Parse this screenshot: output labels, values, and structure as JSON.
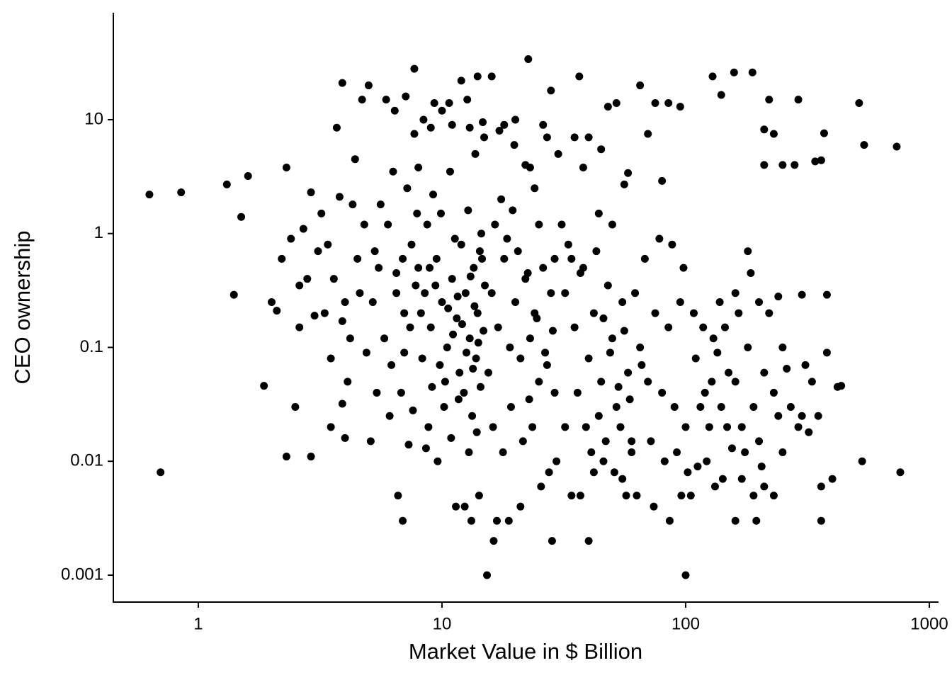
{
  "chart_data": {
    "type": "scatter",
    "x_label": "Market Value in $ Billion",
    "y_label": "CEO ownership",
    "xscale": "log",
    "yscale": "log",
    "grid": false,
    "color": "#000000",
    "xlim": [
      0.448,
      1091
    ],
    "xticks": [
      1,
      10,
      100,
      1000
    ],
    "ylim": [
      0.00058,
      86.9
    ],
    "yticks": [
      0.001,
      0.01,
      0.1,
      1,
      10
    ],
    "x": [
      0.63,
      0.85,
      0.7,
      1.31,
      1.6,
      1.5,
      1.4,
      1.86,
      2.5,
      2.3,
      2.9,
      7.7,
      22.6,
      36.6,
      129,
      158,
      188,
      515,
      540,
      735,
      760,
      530,
      15.3,
      100,
      16.3,
      28.3,
      40,
      370,
      290,
      360,
      220,
      435,
      380,
      3.2,
      3.4,
      3.6,
      3.8,
      4.0,
      4.2,
      4.5,
      4.8,
      3.5,
      4.1,
      4.6,
      3.9,
      4.3,
      4.9,
      3.3,
      4.4,
      3.7,
      3.9,
      5.0,
      4.7,
      4.0,
      3.9,
      5.1,
      3.1,
      2.8,
      2.6,
      2.4,
      2.2,
      2.0,
      2.7,
      2.3,
      2.9,
      2.1,
      2.6,
      3.0,
      3.5,
      5.5,
      6.0,
      6.5,
      7.0,
      7.5,
      5.8,
      6.2,
      6.8,
      7.2,
      7.8,
      5.2,
      5.6,
      6.3,
      6.9,
      7.4,
      7.9,
      5.4,
      6.1,
      6.6,
      6.9,
      7.3,
      5.9,
      6.4,
      7.1,
      7.7,
      8.0,
      7.0,
      6.5,
      5.3,
      7.6,
      8.0,
      8.2,
      8.5,
      9,
      9.5,
      10,
      10.5,
      11,
      11.5,
      12,
      12.5,
      13,
      13.5,
      14,
      14.5,
      15,
      8.7,
      9.2,
      9.8,
      10.3,
      10.8,
      11.3,
      11.8,
      12.3,
      12.8,
      13.3,
      13.8,
      14.3,
      14.8,
      8.3,
      8.9,
      9.4,
      9.9,
      10.6,
      11.1,
      11.6,
      12.1,
      12.6,
      13.1,
      13.6,
      14.1,
      14.6,
      8.8,
      9.6,
      10.2,
      11.4,
      12.4,
      13.2,
      14.2,
      9.0,
      10.0,
      11.0,
      12.0,
      13.0,
      14.0,
      14.7,
      8.4,
      9.3,
      10.7,
      12.7,
      13.7,
      14.9,
      8.6,
      10.9,
      12.9,
      13.9,
      9.1,
      11.7,
      13.4,
      14.4,
      16,
      17,
      18,
      19,
      20,
      21,
      22,
      23,
      24,
      25,
      26,
      27,
      28,
      29,
      16.5,
      17.5,
      18.5,
      19.5,
      20.5,
      22.5,
      24.5,
      26.5,
      28.5,
      16.2,
      17.8,
      19.2,
      21.5,
      23.5,
      25.5,
      27.5,
      29.5,
      16.8,
      18.8,
      21.0,
      17.2,
      19.8,
      22.0,
      24.0,
      26.0,
      28.0,
      16.0,
      18.0,
      20.0,
      23.0,
      27.0,
      30,
      25.0,
      29.0,
      15.5,
      22.8,
      32,
      35,
      38,
      40,
      42,
      45,
      48,
      50,
      52,
      55,
      58,
      33,
      36,
      39,
      41,
      44,
      47,
      51,
      54,
      57,
      31,
      34,
      37,
      43,
      46,
      49,
      53,
      56,
      59,
      35,
      38,
      40,
      45,
      48,
      52,
      56,
      58,
      34,
      37,
      42,
      46,
      55,
      60,
      32,
      50,
      44,
      62,
      65,
      70,
      75,
      80,
      85,
      90,
      95,
      100,
      110,
      120,
      130,
      140,
      150,
      68,
      78,
      88,
      98,
      108,
      118,
      128,
      138,
      148,
      72,
      82,
      92,
      102,
      112,
      122,
      132,
      142,
      63,
      74,
      86,
      96,
      105,
      65,
      75,
      85,
      95,
      70,
      80,
      60,
      66,
      115,
      125,
      135,
      145,
      160,
      170,
      180,
      190,
      200,
      210,
      220,
      230,
      240,
      250,
      270,
      290,
      310,
      330,
      350,
      380,
      420,
      160,
      180,
      200,
      240,
      300,
      170,
      190,
      210,
      230,
      160,
      195,
      250,
      300,
      360,
      360,
      400,
      155,
      175,
      205,
      210,
      230,
      250,
      280,
      210,
      340,
      140,
      165,
      185,
      260,
      320
    ],
    "values": [
      2.2,
      2.3,
      0.008,
      2.7,
      3.2,
      1.4,
      0.29,
      0.046,
      0.03,
      0.011,
      0.011,
      28,
      34,
      24,
      24,
      26,
      26,
      14,
      6,
      5.8,
      0.008,
      0.01,
      0.001,
      0.001,
      0.002,
      0.002,
      0.002,
      7.6,
      15,
      4.4,
      15,
      0.046,
      0.29,
      1.5,
      0.8,
      0.4,
      2.1,
      0.25,
      0.12,
      0.6,
      1.2,
      0.08,
      0.05,
      0.3,
      0.17,
      1.8,
      0.09,
      0.2,
      4.5,
      8.5,
      21,
      20,
      15,
      0.016,
      0.032,
      0.015,
      0.7,
      0.4,
      0.35,
      0.9,
      0.6,
      0.25,
      1.1,
      3.8,
      2.3,
      0.21,
      0.15,
      0.19,
      0.02,
      0.5,
      1.2,
      0.3,
      0.2,
      0.8,
      0.12,
      0.07,
      0.04,
      2.5,
      0.35,
      0.25,
      1.8,
      3.5,
      0.6,
      0.15,
      1.5,
      0.04,
      0.025,
      0.005,
      0.003,
      0.014,
      15,
      12,
      16,
      7.5,
      3.8,
      0.09,
      0.45,
      0.7,
      0.028,
      0.5,
      0.2,
      0.3,
      0.15,
      0.6,
      0.25,
      0.1,
      0.4,
      0.18,
      0.8,
      0.3,
      0.12,
      0.5,
      0.2,
      1.0,
      0.35,
      1.2,
      2.2,
      0.07,
      0.05,
      3.5,
      0.9,
      0.06,
      0.04,
      1.6,
      0.025,
      0.08,
      0.7,
      0.14,
      0.08,
      0.5,
      0.35,
      1.5,
      0.22,
      0.13,
      0.28,
      0.16,
      0.09,
      0.42,
      0.23,
      0.11,
      0.6,
      0.02,
      0.01,
      0.03,
      0.004,
      0.004,
      0.003,
      0.005,
      8.5,
      12,
      9,
      22,
      8.5,
      24,
      9.5,
      10,
      14,
      14,
      15,
      5,
      7,
      0.013,
      0.016,
      0.012,
      0.018,
      0.045,
      0.035,
      0.065,
      0.045,
      0.3,
      0.15,
      0.6,
      0.1,
      0.25,
      0.08,
      0.4,
      0.12,
      0.2,
      0.05,
      0.5,
      0.07,
      0.3,
      0.04,
      1.2,
      2.0,
      0.9,
      1.6,
      0.7,
      0.45,
      0.18,
      0.09,
      0.14,
      0.02,
      0.012,
      0.03,
      0.015,
      0.02,
      0.006,
      0.008,
      0.01,
      0.003,
      0.003,
      0.004,
      8,
      6,
      4,
      2.5,
      9,
      18,
      24,
      9,
      10,
      3.8,
      7,
      5,
      1.2,
      0.6,
      0.06,
      0.035,
      0.3,
      0.15,
      0.5,
      0.08,
      0.2,
      0.05,
      0.35,
      0.12,
      0.03,
      0.25,
      0.06,
      0.8,
      0.04,
      0.02,
      0.012,
      0.025,
      0.015,
      0.008,
      0.02,
      0.005,
      1.2,
      0.6,
      0.45,
      0.7,
      0.18,
      0.09,
      0.045,
      0.14,
      0.035,
      7,
      3.8,
      7,
      5.5,
      13,
      14,
      2.7,
      3.4,
      0.005,
      0.005,
      0.008,
      0.01,
      0.007,
      0.015,
      0.02,
      1.2,
      1.5,
      0.3,
      0.1,
      0.05,
      0.2,
      0.04,
      0.15,
      0.03,
      0.25,
      0.02,
      0.08,
      0.04,
      0.12,
      0.03,
      0.06,
      0.6,
      0.9,
      0.8,
      0.5,
      0.2,
      0.15,
      0.05,
      0.25,
      0.02,
      0.015,
      0.01,
      0.012,
      0.008,
      0.009,
      0.01,
      0.006,
      0.007,
      0.005,
      0.004,
      0.003,
      0.005,
      0.005,
      20,
      14,
      14,
      13,
      7.5,
      2.9,
      0.012,
      0.07,
      0.03,
      0.02,
      0.09,
      0.15,
      0.05,
      0.02,
      0.1,
      0.03,
      0.015,
      0.06,
      0.2,
      0.04,
      0.025,
      0.1,
      0.03,
      0.02,
      0.07,
      0.05,
      0.025,
      0.09,
      0.045,
      0.3,
      0.7,
      0.25,
      0.28,
      0.29,
      0.007,
      0.005,
      0.006,
      0.005,
      0.003,
      0.003,
      0.012,
      0.025,
      0.006,
      0.003,
      0.007,
      0.013,
      0.012,
      0.009,
      8.2,
      7.5,
      4,
      4,
      4,
      4.3,
      16.5,
      0.2,
      0.45,
      0.065,
      0.018
    ]
  }
}
